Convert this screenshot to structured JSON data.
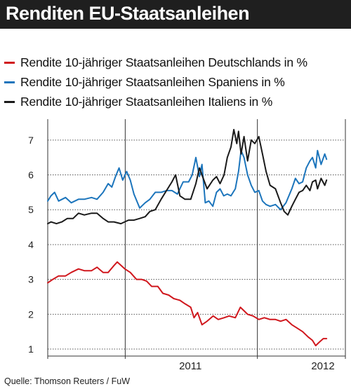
{
  "title": "Renditen EU-Staatsanleihen",
  "source": "Quelle: Thomson Reuters / FuW",
  "colors": {
    "title_bg": "#1f1f1f",
    "germany": "#d0171d",
    "spain": "#1c75bc",
    "italy": "#1a1a1a",
    "grid": "#555555"
  },
  "chart_data": {
    "type": "line",
    "title": "Renditen EU-Staatsanleihen",
    "xlabel": "",
    "ylabel": "",
    "ylim": [
      0.8,
      7.6
    ],
    "yticks": [
      1,
      2,
      3,
      4,
      5,
      6,
      7
    ],
    "xlim": [
      "2010-06-01",
      "2012-08-31"
    ],
    "xtick_labels": [
      {
        "label": "2011",
        "at": "2011-06-30"
      },
      {
        "label": "2012",
        "at": "2012-06-30"
      }
    ],
    "year_boundaries": [
      "2010-06-01",
      "2011-01-01",
      "2012-01-01",
      "2012-08-31"
    ],
    "grid": "horizontal dotted",
    "legend_position": "top-left",
    "series": [
      {
        "name": "Rendite 10-jähriger Staatsanleihen Deutschlands in %",
        "color": "#d0171d",
        "points": [
          [
            "2010-06-01",
            2.9
          ],
          [
            "2010-06-15",
            3.0
          ],
          [
            "2010-07-01",
            3.1
          ],
          [
            "2010-07-20",
            3.1
          ],
          [
            "2010-08-05",
            3.2
          ],
          [
            "2010-08-25",
            3.3
          ],
          [
            "2010-09-10",
            3.25
          ],
          [
            "2010-09-30",
            3.25
          ],
          [
            "2010-10-15",
            3.35
          ],
          [
            "2010-11-01",
            3.2
          ],
          [
            "2010-11-15",
            3.2
          ],
          [
            "2010-12-01",
            3.4
          ],
          [
            "2010-12-10",
            3.5
          ],
          [
            "2010-12-31",
            3.3
          ],
          [
            "2011-01-15",
            3.2
          ],
          [
            "2011-02-01",
            3.0
          ],
          [
            "2011-02-15",
            3.0
          ],
          [
            "2011-03-01",
            2.95
          ],
          [
            "2011-03-15",
            2.8
          ],
          [
            "2011-04-01",
            2.8
          ],
          [
            "2011-04-15",
            2.6
          ],
          [
            "2011-05-01",
            2.55
          ],
          [
            "2011-05-15",
            2.45
          ],
          [
            "2011-06-01",
            2.4
          ],
          [
            "2011-06-15",
            2.3
          ],
          [
            "2011-07-01",
            2.2
          ],
          [
            "2011-07-10",
            1.9
          ],
          [
            "2011-07-20",
            2.05
          ],
          [
            "2011-08-01",
            1.7
          ],
          [
            "2011-08-15",
            1.8
          ],
          [
            "2011-09-01",
            1.95
          ],
          [
            "2011-09-15",
            1.85
          ],
          [
            "2011-10-01",
            1.9
          ],
          [
            "2011-10-15",
            1.95
          ],
          [
            "2011-11-01",
            1.9
          ],
          [
            "2011-11-15",
            2.2
          ],
          [
            "2011-11-25",
            2.1
          ],
          [
            "2011-12-05",
            2.0
          ],
          [
            "2011-12-20",
            1.95
          ],
          [
            "2012-01-05",
            1.85
          ],
          [
            "2012-01-20",
            1.9
          ],
          [
            "2012-02-05",
            1.85
          ],
          [
            "2012-02-20",
            1.85
          ],
          [
            "2012-03-05",
            1.8
          ],
          [
            "2012-03-20",
            1.85
          ],
          [
            "2012-04-05",
            1.7
          ],
          [
            "2012-04-20",
            1.6
          ],
          [
            "2012-05-05",
            1.5
          ],
          [
            "2012-05-20",
            1.35
          ],
          [
            "2012-06-01",
            1.25
          ],
          [
            "2012-06-10",
            1.1
          ],
          [
            "2012-06-20",
            1.2
          ],
          [
            "2012-07-01",
            1.3
          ],
          [
            "2012-07-10",
            1.3
          ]
        ]
      },
      {
        "name": "Rendite 10-jähriger Staatsanleihen Spaniens in %",
        "color": "#1c75bc",
        "points": [
          [
            "2010-06-01",
            5.25
          ],
          [
            "2010-06-10",
            5.4
          ],
          [
            "2010-06-20",
            5.5
          ],
          [
            "2010-07-01",
            5.25
          ],
          [
            "2010-07-20",
            5.35
          ],
          [
            "2010-08-05",
            5.2
          ],
          [
            "2010-08-25",
            5.3
          ],
          [
            "2010-09-10",
            5.3
          ],
          [
            "2010-09-30",
            5.35
          ],
          [
            "2010-10-15",
            5.3
          ],
          [
            "2010-11-01",
            5.5
          ],
          [
            "2010-11-15",
            5.75
          ],
          [
            "2010-11-25",
            5.65
          ],
          [
            "2010-12-05",
            5.95
          ],
          [
            "2010-12-15",
            6.2
          ],
          [
            "2010-12-25",
            5.85
          ],
          [
            "2011-01-05",
            6.1
          ],
          [
            "2011-01-15",
            5.85
          ],
          [
            "2011-01-25",
            5.45
          ],
          [
            "2011-02-10",
            5.05
          ],
          [
            "2011-02-25",
            5.2
          ],
          [
            "2011-03-10",
            5.3
          ],
          [
            "2011-03-25",
            5.5
          ],
          [
            "2011-04-10",
            5.5
          ],
          [
            "2011-04-25",
            5.55
          ],
          [
            "2011-05-10",
            5.55
          ],
          [
            "2011-05-25",
            5.45
          ],
          [
            "2011-06-10",
            5.8
          ],
          [
            "2011-06-25",
            5.8
          ],
          [
            "2011-07-05",
            6.0
          ],
          [
            "2011-07-15",
            6.5
          ],
          [
            "2011-07-25",
            5.95
          ],
          [
            "2011-08-01",
            6.3
          ],
          [
            "2011-08-10",
            5.2
          ],
          [
            "2011-08-20",
            5.25
          ],
          [
            "2011-08-31",
            5.1
          ],
          [
            "2011-09-10",
            5.5
          ],
          [
            "2011-09-20",
            5.6
          ],
          [
            "2011-09-30",
            5.4
          ],
          [
            "2011-10-10",
            5.45
          ],
          [
            "2011-10-20",
            5.4
          ],
          [
            "2011-11-01",
            5.6
          ],
          [
            "2011-11-10",
            6.1
          ],
          [
            "2011-11-17",
            6.7
          ],
          [
            "2011-11-25",
            6.5
          ],
          [
            "2011-12-05",
            6.0
          ],
          [
            "2011-12-15",
            5.7
          ],
          [
            "2011-12-25",
            5.5
          ],
          [
            "2012-01-05",
            5.55
          ],
          [
            "2012-01-15",
            5.25
          ],
          [
            "2012-01-25",
            5.15
          ],
          [
            "2012-02-05",
            5.1
          ],
          [
            "2012-02-20",
            5.15
          ],
          [
            "2012-03-05",
            5.0
          ],
          [
            "2012-03-20",
            5.2
          ],
          [
            "2012-04-05",
            5.6
          ],
          [
            "2012-04-15",
            5.9
          ],
          [
            "2012-04-25",
            5.75
          ],
          [
            "2012-05-05",
            5.8
          ],
          [
            "2012-05-15",
            6.2
          ],
          [
            "2012-05-25",
            6.4
          ],
          [
            "2012-06-01",
            6.5
          ],
          [
            "2012-06-10",
            6.2
          ],
          [
            "2012-06-15",
            6.7
          ],
          [
            "2012-06-25",
            6.3
          ],
          [
            "2012-07-05",
            6.6
          ],
          [
            "2012-07-10",
            6.45
          ]
        ]
      },
      {
        "name": "Rendite 10-jähriger Staatsanleihen Italiens in %",
        "color": "#1a1a1a",
        "points": [
          [
            "2010-06-01",
            4.6
          ],
          [
            "2010-06-10",
            4.65
          ],
          [
            "2010-06-25",
            4.6
          ],
          [
            "2010-07-10",
            4.65
          ],
          [
            "2010-07-25",
            4.75
          ],
          [
            "2010-08-10",
            4.75
          ],
          [
            "2010-08-25",
            4.9
          ],
          [
            "2010-09-10",
            4.85
          ],
          [
            "2010-09-30",
            4.9
          ],
          [
            "2010-10-15",
            4.9
          ],
          [
            "2010-11-01",
            4.75
          ],
          [
            "2010-11-15",
            4.65
          ],
          [
            "2010-12-01",
            4.65
          ],
          [
            "2010-12-20",
            4.6
          ],
          [
            "2011-01-10",
            4.7
          ],
          [
            "2011-01-25",
            4.7
          ],
          [
            "2011-02-10",
            4.75
          ],
          [
            "2011-02-25",
            4.8
          ],
          [
            "2011-03-10",
            4.95
          ],
          [
            "2011-03-25",
            5.0
          ],
          [
            "2011-04-10",
            5.3
          ],
          [
            "2011-04-25",
            5.55
          ],
          [
            "2011-05-10",
            5.8
          ],
          [
            "2011-05-20",
            6.0
          ],
          [
            "2011-06-01",
            5.4
          ],
          [
            "2011-06-15",
            5.3
          ],
          [
            "2011-07-01",
            5.3
          ],
          [
            "2011-07-15",
            5.75
          ],
          [
            "2011-07-25",
            6.2
          ],
          [
            "2011-08-01",
            6.0
          ],
          [
            "2011-08-15",
            5.6
          ],
          [
            "2011-08-31",
            5.85
          ],
          [
            "2011-09-10",
            5.95
          ],
          [
            "2011-09-20",
            5.75
          ],
          [
            "2011-10-01",
            6.0
          ],
          [
            "2011-10-10",
            6.5
          ],
          [
            "2011-10-20",
            6.8
          ],
          [
            "2011-10-28",
            7.3
          ],
          [
            "2011-11-05",
            6.9
          ],
          [
            "2011-11-10",
            7.25
          ],
          [
            "2011-11-17",
            6.6
          ],
          [
            "2011-11-25",
            7.1
          ],
          [
            "2011-12-05",
            6.4
          ],
          [
            "2011-12-15",
            7.0
          ],
          [
            "2011-12-25",
            6.9
          ],
          [
            "2012-01-05",
            7.1
          ],
          [
            "2012-01-15",
            6.6
          ],
          [
            "2012-01-25",
            6.1
          ],
          [
            "2012-02-05",
            5.7
          ],
          [
            "2012-02-20",
            5.6
          ],
          [
            "2012-03-05",
            5.2
          ],
          [
            "2012-03-15",
            4.95
          ],
          [
            "2012-03-25",
            4.85
          ],
          [
            "2012-04-05",
            5.1
          ],
          [
            "2012-04-15",
            5.3
          ],
          [
            "2012-04-25",
            5.5
          ],
          [
            "2012-05-05",
            5.55
          ],
          [
            "2012-05-15",
            5.7
          ],
          [
            "2012-05-25",
            5.55
          ],
          [
            "2012-06-01",
            5.8
          ],
          [
            "2012-06-10",
            5.85
          ],
          [
            "2012-06-15",
            5.6
          ],
          [
            "2012-06-25",
            5.9
          ],
          [
            "2012-07-05",
            5.7
          ],
          [
            "2012-07-10",
            5.85
          ]
        ]
      }
    ]
  }
}
